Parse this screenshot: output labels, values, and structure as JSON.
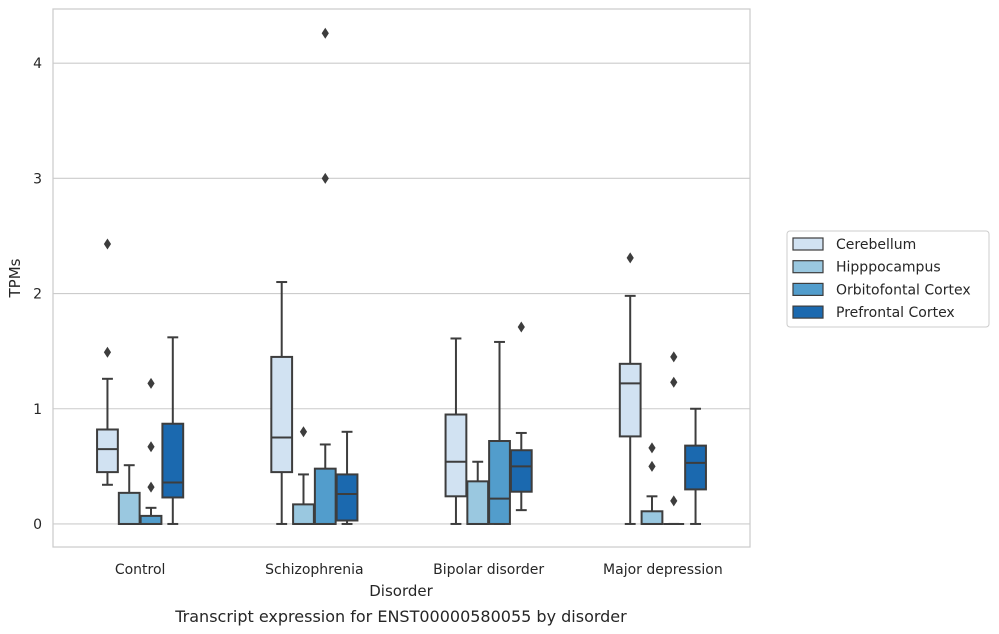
{
  "chart_data": {
    "type": "box",
    "xlabel": "Disorder",
    "ylabel": "TPMs",
    "caption": "Transcript expression for ENST00000580055 by disorder",
    "ylim": [
      -0.2,
      4.47
    ],
    "yticks": [
      "0",
      "1",
      "2",
      "3",
      "4"
    ],
    "grid": "horizontal",
    "legend_position": "right",
    "categories": [
      "Control",
      "Schizophrenia",
      "Bipolar disorder",
      "Major depression"
    ],
    "series": [
      {
        "name": "Cerebellum",
        "color": "#d1e2f2",
        "boxes": [
          {
            "whislo": 0.34,
            "q1": 0.45,
            "med": 0.65,
            "q3": 0.82,
            "whishi": 1.26,
            "fliers": [
              1.49,
              2.43
            ]
          },
          {
            "whislo": 0.0,
            "q1": 0.45,
            "med": 0.75,
            "q3": 1.45,
            "whishi": 2.1,
            "fliers": []
          },
          {
            "whislo": 0.0,
            "q1": 0.24,
            "med": 0.54,
            "q3": 0.95,
            "whishi": 1.61,
            "fliers": []
          },
          {
            "whislo": 0.0,
            "q1": 0.76,
            "med": 1.22,
            "q3": 1.39,
            "whishi": 1.98,
            "fliers": [
              2.31
            ]
          }
        ]
      },
      {
        "name": "Hipppocampus",
        "color": "#9ac8e0",
        "boxes": [
          {
            "whislo": 0.0,
            "q1": 0.0,
            "med": 0.0,
            "q3": 0.27,
            "whishi": 0.51,
            "fliers": []
          },
          {
            "whislo": 0.0,
            "q1": 0.0,
            "med": 0.0,
            "q3": 0.17,
            "whishi": 0.43,
            "fliers": [
              0.8
            ]
          },
          {
            "whislo": 0.0,
            "q1": 0.0,
            "med": 0.0,
            "q3": 0.37,
            "whishi": 0.54,
            "fliers": []
          },
          {
            "whislo": 0.0,
            "q1": 0.0,
            "med": 0.0,
            "q3": 0.11,
            "whishi": 0.24,
            "fliers": [
              0.5,
              0.66
            ]
          }
        ]
      },
      {
        "name": "Orbitofontal Cortex",
        "color": "#529dcc",
        "boxes": [
          {
            "whislo": 0.0,
            "q1": 0.0,
            "med": 0.0,
            "q3": 0.07,
            "whishi": 0.14,
            "fliers": [
              0.32,
              0.67,
              1.22
            ]
          },
          {
            "whislo": 0.0,
            "q1": 0.0,
            "med": 0.0,
            "q3": 0.48,
            "whishi": 0.69,
            "fliers": [
              3.0,
              4.26
            ]
          },
          {
            "whislo": 0.0,
            "q1": 0.0,
            "med": 0.22,
            "q3": 0.72,
            "whishi": 1.58,
            "fliers": []
          },
          {
            "whislo": 0.0,
            "q1": 0.0,
            "med": 0.0,
            "q3": 0.0,
            "whishi": 0.0,
            "fliers": [
              0.2,
              1.23,
              1.45
            ]
          }
        ]
      },
      {
        "name": "Prefrontal Cortex",
        "color": "#1b69af",
        "boxes": [
          {
            "whislo": 0.0,
            "q1": 0.23,
            "med": 0.36,
            "q3": 0.87,
            "whishi": 1.62,
            "fliers": []
          },
          {
            "whislo": 0.0,
            "q1": 0.03,
            "med": 0.26,
            "q3": 0.43,
            "whishi": 0.8,
            "fliers": []
          },
          {
            "whislo": 0.12,
            "q1": 0.28,
            "med": 0.5,
            "q3": 0.64,
            "whishi": 0.79,
            "fliers": [
              1.71
            ]
          },
          {
            "whislo": 0.0,
            "q1": 0.3,
            "med": 0.53,
            "q3": 0.68,
            "whishi": 1.0,
            "fliers": []
          }
        ]
      }
    ]
  }
}
